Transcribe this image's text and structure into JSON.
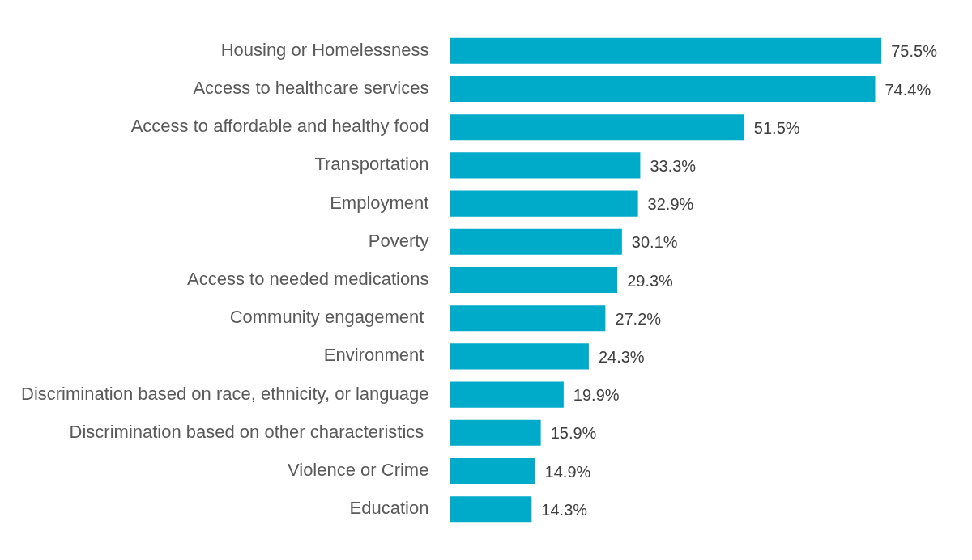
{
  "chart_data": {
    "type": "bar",
    "orientation": "horizontal",
    "categories": [
      "Housing or Homelessness",
      "Access to healthcare services",
      "Access to affordable and healthy food",
      "Transportation",
      "Employment",
      "Poverty",
      "Access to needed medications",
      "Community engagement ",
      "Environment ",
      "Discrimination based on race, ethnicity, or language",
      "Discrimination based on other characteristics ",
      "Violence or Crime",
      "Education"
    ],
    "values": [
      75.5,
      74.4,
      51.5,
      33.3,
      32.9,
      30.1,
      29.3,
      27.2,
      24.3,
      19.9,
      15.9,
      14.9,
      14.3
    ],
    "value_labels": [
      "75.5%",
      "74.4%",
      "51.5%",
      "33.3%",
      "32.9%",
      "30.1%",
      "29.3%",
      "27.2%",
      "24.3%",
      "19.9%",
      "15.9%",
      "14.9%",
      "14.3%"
    ],
    "color": "#00abc9",
    "tick_labels": "y",
    "legend": false
  }
}
